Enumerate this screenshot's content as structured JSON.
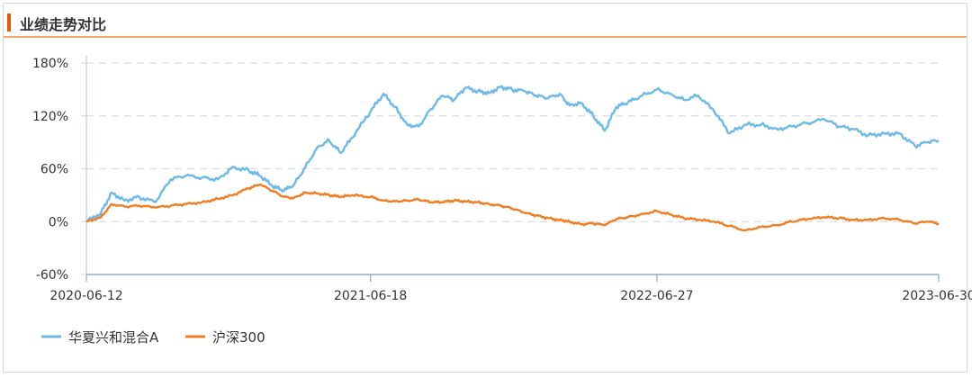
{
  "panel": {
    "title": "业绩走势对比"
  },
  "colors": {
    "fund": "#6cb9ea",
    "index": "#f07d22",
    "accent": "#e8590c",
    "header_line": "#f3a66a",
    "grid": "#d9dde3"
  },
  "chart_data": {
    "type": "line",
    "title": "",
    "xlabel": "",
    "ylabel": "",
    "x_ticks": [
      "2020-06-12",
      "2021-06-18",
      "2022-06-27",
      "2023-06-30"
    ],
    "x_range": [
      "2020-06-12",
      "2023-06-30"
    ],
    "y_ticks": [
      "180%",
      "120%",
      "60%",
      "0%",
      "-60%"
    ],
    "y_tick_values": [
      180,
      120,
      60,
      0,
      -60
    ],
    "ylim": [
      -60,
      180
    ],
    "grid": true,
    "legend": "bottom-left",
    "series": [
      {
        "name": "华夏兴和混合A",
        "color": "#6cb9ea",
        "x": [
          "2020-06-12",
          "2020-07-01",
          "2020-07-15",
          "2020-08-01",
          "2020-08-20",
          "2020-09-10",
          "2020-09-30",
          "2020-10-20",
          "2020-11-10",
          "2020-12-01",
          "2020-12-20",
          "2021-01-10",
          "2021-01-25",
          "2021-02-10",
          "2021-02-25",
          "2021-03-10",
          "2021-03-25",
          "2021-04-10",
          "2021-04-25",
          "2021-05-10",
          "2021-05-25",
          "2021-06-18",
          "2021-07-05",
          "2021-07-20",
          "2021-08-05",
          "2021-08-20",
          "2021-09-05",
          "2021-09-20",
          "2021-10-05",
          "2021-10-20",
          "2021-11-05",
          "2021-11-20",
          "2021-12-05",
          "2021-12-20",
          "2022-01-05",
          "2022-01-20",
          "2022-02-05",
          "2022-02-20",
          "2022-03-05",
          "2022-03-20",
          "2022-04-05",
          "2022-04-20",
          "2022-05-05",
          "2022-05-20",
          "2022-06-05",
          "2022-06-27",
          "2022-07-15",
          "2022-08-01",
          "2022-08-20",
          "2022-09-10",
          "2022-09-30",
          "2022-10-20",
          "2022-11-10",
          "2022-12-01",
          "2022-12-20",
          "2023-01-10",
          "2023-02-01",
          "2023-02-20",
          "2023-03-10",
          "2023-03-30",
          "2023-04-20",
          "2023-05-10",
          "2023-05-30",
          "2023-06-15",
          "2023-06-30"
        ],
        "values": [
          0,
          10,
          33,
          24,
          28,
          22,
          48,
          52,
          50,
          48,
          62,
          58,
          52,
          40,
          35,
          42,
          62,
          85,
          92,
          78,
          95,
          125,
          145,
          130,
          110,
          108,
          128,
          143,
          138,
          152,
          148,
          146,
          153,
          150,
          148,
          143,
          140,
          145,
          132,
          135,
          120,
          103,
          130,
          135,
          142,
          150,
          145,
          138,
          143,
          125,
          100,
          110,
          110,
          105,
          108,
          112,
          116,
          108,
          105,
          98,
          100,
          100,
          86,
          90,
          92
        ]
      },
      {
        "name": "沪深300",
        "color": "#f07d22",
        "x": [
          "2020-06-12",
          "2020-07-01",
          "2020-07-15",
          "2020-08-01",
          "2020-08-20",
          "2020-09-10",
          "2020-09-30",
          "2020-10-20",
          "2020-11-10",
          "2020-12-01",
          "2020-12-20",
          "2021-01-10",
          "2021-01-25",
          "2021-02-10",
          "2021-02-25",
          "2021-03-10",
          "2021-03-25",
          "2021-04-10",
          "2021-04-25",
          "2021-05-10",
          "2021-05-25",
          "2021-06-18",
          "2021-07-05",
          "2021-07-20",
          "2021-08-05",
          "2021-08-20",
          "2021-09-05",
          "2021-09-20",
          "2021-10-05",
          "2021-10-20",
          "2021-11-05",
          "2021-11-20",
          "2021-12-05",
          "2021-12-20",
          "2022-01-05",
          "2022-01-20",
          "2022-02-05",
          "2022-02-20",
          "2022-03-05",
          "2022-03-20",
          "2022-04-05",
          "2022-04-20",
          "2022-05-05",
          "2022-05-20",
          "2022-06-05",
          "2022-06-27",
          "2022-07-15",
          "2022-08-01",
          "2022-08-20",
          "2022-09-10",
          "2022-09-30",
          "2022-10-20",
          "2022-11-10",
          "2022-12-01",
          "2022-12-20",
          "2023-01-10",
          "2023-02-01",
          "2023-02-20",
          "2023-03-10",
          "2023-03-30",
          "2023-04-20",
          "2023-05-10",
          "2023-05-30",
          "2023-06-15",
          "2023-06-30"
        ],
        "values": [
          0,
          5,
          20,
          17,
          18,
          16,
          18,
          20,
          22,
          26,
          30,
          38,
          42,
          35,
          28,
          27,
          33,
          32,
          30,
          28,
          30,
          28,
          24,
          23,
          24,
          25,
          22,
          22,
          24,
          23,
          22,
          20,
          18,
          15,
          10,
          7,
          4,
          2,
          0,
          -3,
          -2,
          -4,
          3,
          5,
          8,
          12,
          8,
          4,
          2,
          0,
          -5,
          -10,
          -6,
          -4,
          0,
          3,
          5,
          4,
          2,
          2,
          4,
          2,
          -2,
          0,
          -2
        ]
      }
    ]
  }
}
